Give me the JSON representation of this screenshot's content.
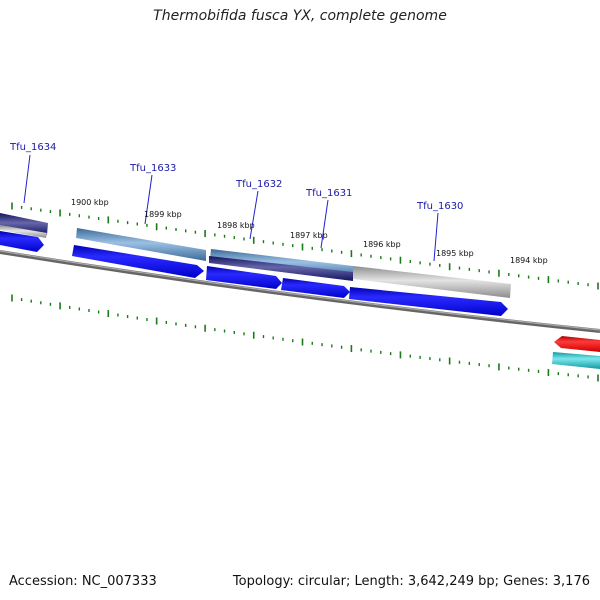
{
  "title": "Thermobifida fusca YX, complete genome",
  "accession": "Accession: NC_007333",
  "summary": "Topology: circular; Length: 3,642,249 bp; Genes: 3,176",
  "gene_labels": [
    {
      "text": "Tfu_1634"
    },
    {
      "text": "Tfu_1633"
    },
    {
      "text": "Tfu_1632"
    },
    {
      "text": "Tfu_1631"
    },
    {
      "text": "Tfu_1630"
    }
  ],
  "kbp_labels": [
    "1900 kbp",
    "1899 kbp",
    "1898 kbp",
    "1897 kbp",
    "1896 kbp",
    "1895 kbp",
    "1894 kbp"
  ],
  "colors": {
    "cds": "#0000ee",
    "cds_reverse": "#ee0000",
    "backbone": "#777777",
    "tick": "#1a7a1a",
    "feature_blue": "#4a7fb0",
    "feature_navy": "#1a1a70",
    "feature_gray": "#b8b8b8",
    "feature_cyan": "#22c4cc",
    "label_line": "#2222cc"
  }
}
